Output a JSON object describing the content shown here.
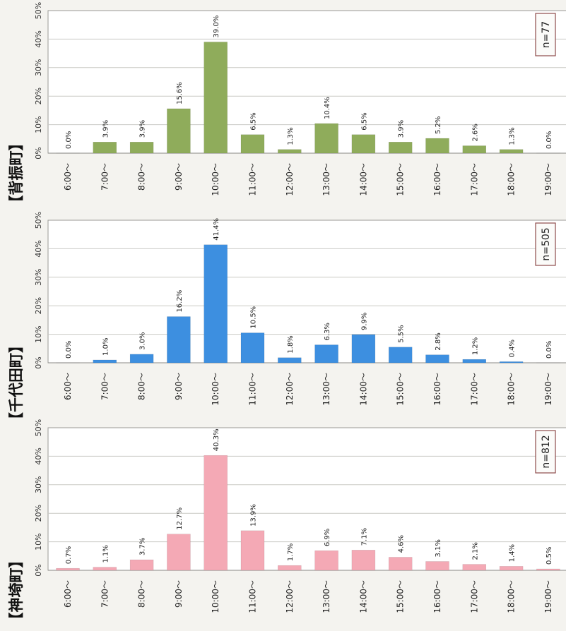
{
  "colors": {
    "series1": "#8fac5b",
    "series2": "#3d8fe0",
    "series3": "#f4a9b5",
    "nbox_border": "#8e4b4b"
  },
  "chart_data": [
    {
      "type": "bar",
      "title": "【背振町】",
      "n_label": "n=77",
      "categories": [
        "6:00～",
        "7:00～",
        "8:00～",
        "9:00～",
        "10:00～",
        "11:00～",
        "12:00～",
        "13:00～",
        "14:00～",
        "15:00～",
        "16:00～",
        "17:00～",
        "18:00～",
        "19:00～"
      ],
      "values": [
        0.0,
        3.9,
        3.9,
        15.6,
        39.0,
        6.5,
        1.3,
        10.4,
        6.5,
        3.9,
        5.2,
        2.6,
        1.3,
        0.0
      ],
      "value_labels": [
        "0.0%",
        "3.9%",
        "3.9%",
        "15.6%",
        "39.0%",
        "6.5%",
        "1.3%",
        "10.4%",
        "6.5%",
        "3.9%",
        "5.2%",
        "2.6%",
        "1.3%",
        "0.0%"
      ],
      "ylim": [
        0,
        50
      ],
      "yticks": [
        "0%",
        "10%",
        "20%",
        "30%",
        "40%",
        "50%"
      ],
      "grid": true,
      "color": "#8fac5b"
    },
    {
      "type": "bar",
      "title": "【千代田町】",
      "n_label": "n=505",
      "categories": [
        "6:00～",
        "7:00～",
        "8:00～",
        "9:00～",
        "10:00～",
        "11:00～",
        "12:00～",
        "13:00～",
        "14:00～",
        "15:00～",
        "16:00～",
        "17:00～",
        "18:00～",
        "19:00～"
      ],
      "values": [
        0.0,
        1.0,
        3.0,
        16.2,
        41.4,
        10.5,
        1.8,
        6.3,
        9.9,
        5.5,
        2.8,
        1.2,
        0.4,
        0.0
      ],
      "value_labels": [
        "0.0%",
        "1.0%",
        "3.0%",
        "16.2%",
        "41.4%",
        "10.5%",
        "1.8%",
        "6.3%",
        "9.9%",
        "5.5%",
        "2.8%",
        "1.2%",
        "0.4%",
        "0.0%"
      ],
      "ylim": [
        0,
        50
      ],
      "yticks": [
        "0%",
        "10%",
        "20%",
        "30%",
        "40%",
        "50%"
      ],
      "grid": true,
      "color": "#3d8fe0"
    },
    {
      "type": "bar",
      "title": "【神埼町】",
      "n_label": "n=812",
      "categories": [
        "6:00～",
        "7:00～",
        "8:00～",
        "9:00～",
        "10:00～",
        "11:00～",
        "12:00～",
        "13:00～",
        "14:00～",
        "15:00～",
        "16:00～",
        "17:00～",
        "18:00～",
        "19:00～"
      ],
      "values": [
        0.7,
        1.1,
        3.7,
        12.7,
        40.3,
        13.9,
        1.7,
        6.9,
        7.1,
        4.6,
        3.1,
        2.1,
        1.4,
        0.5
      ],
      "value_labels": [
        "0.7%",
        "1.1%",
        "3.7%",
        "12.7%",
        "40.3%",
        "13.9%",
        "1.7%",
        "6.9%",
        "7.1%",
        "4.6%",
        "3.1%",
        "2.1%",
        "1.4%",
        "0.5%"
      ],
      "ylim": [
        0,
        50
      ],
      "yticks": [
        "0%",
        "10%",
        "20%",
        "30%",
        "40%",
        "50%"
      ],
      "grid": true,
      "color": "#f4a9b5"
    }
  ]
}
